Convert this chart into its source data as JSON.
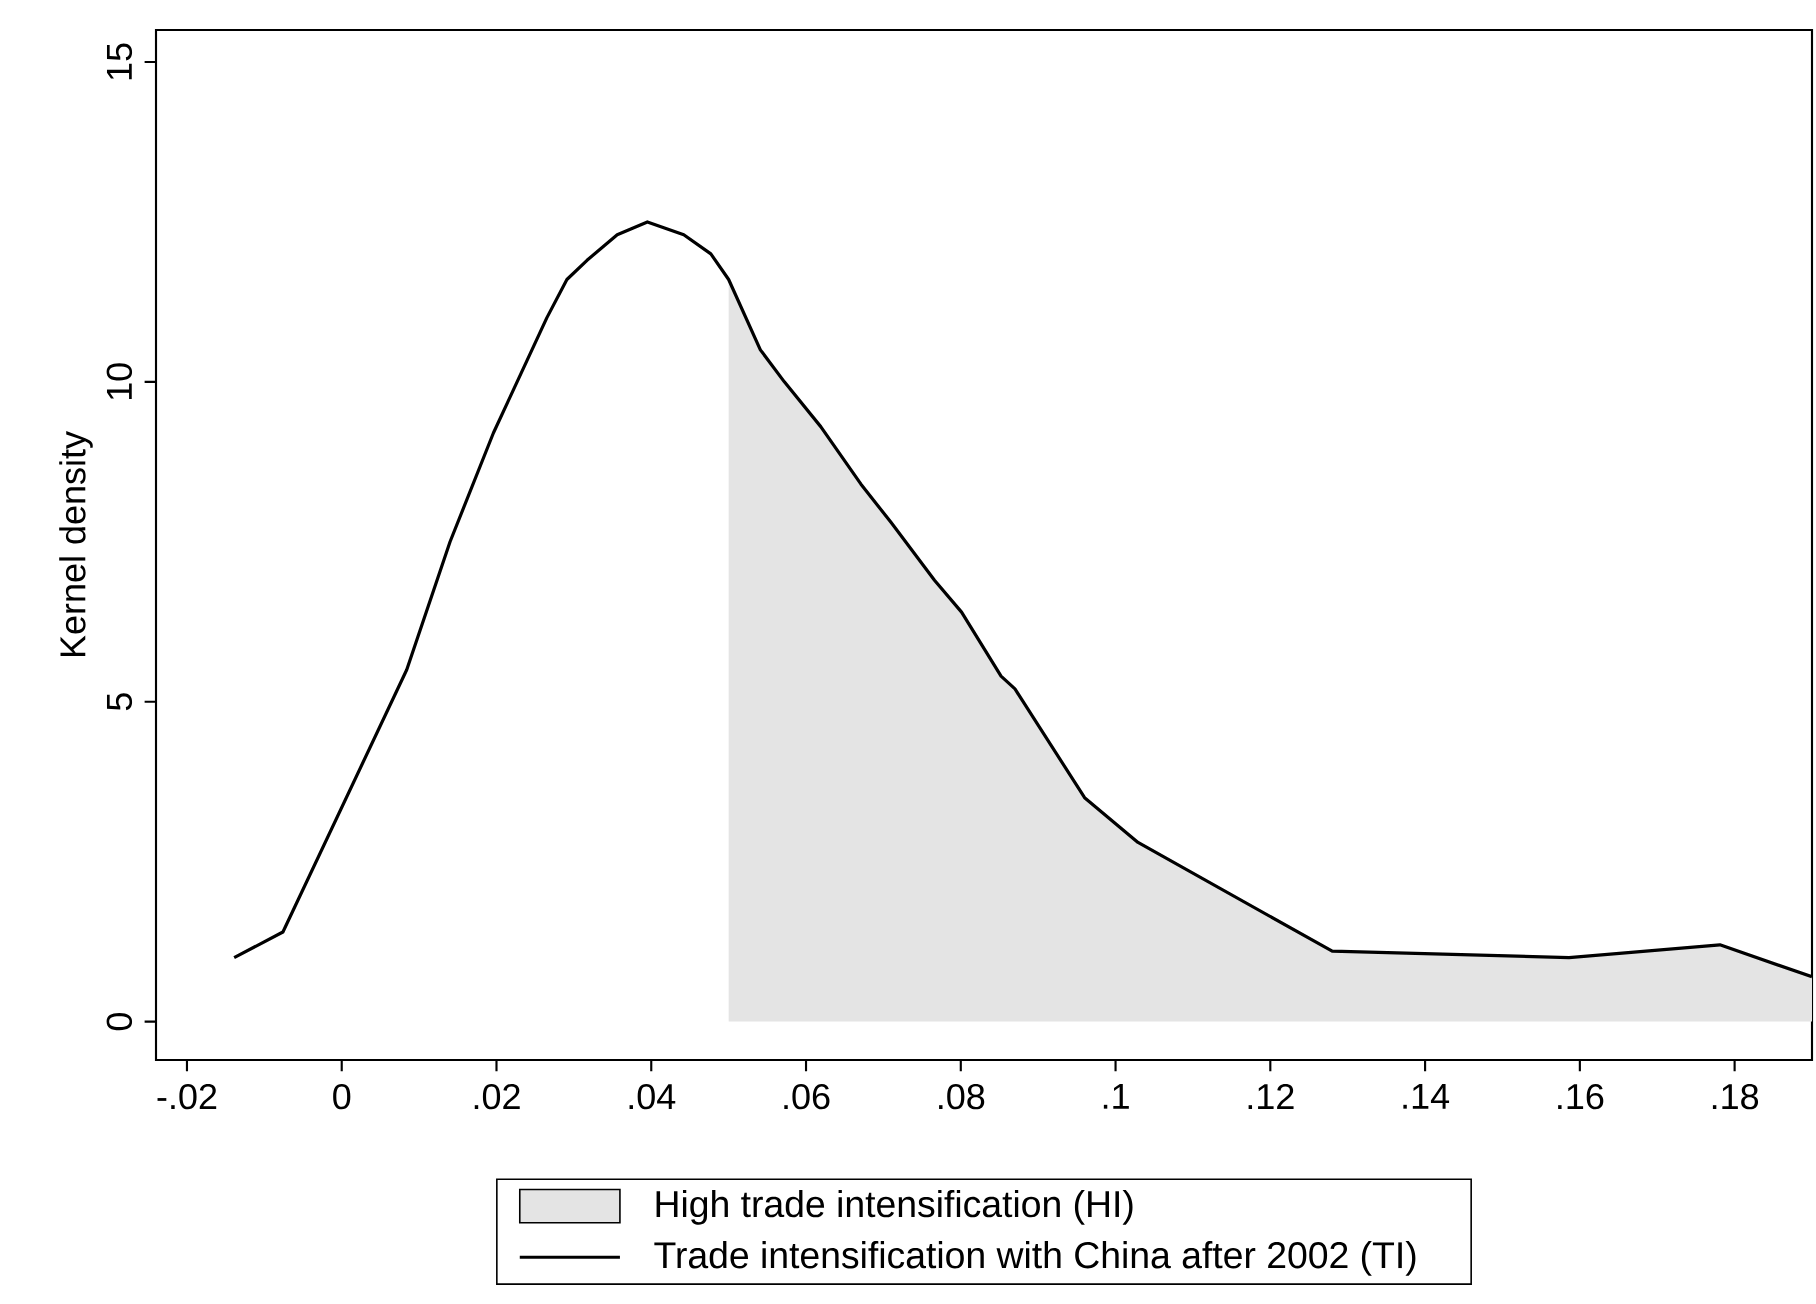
{
  "chart_data": {
    "type": "line",
    "ylabel": "Kernel density",
    "xlim": [
      -0.024,
      0.19
    ],
    "ylim": [
      -0.6,
      15.5
    ],
    "xticks": [
      {
        "value": -0.02,
        "label": "-.02"
      },
      0,
      {
        "value": 0.02,
        "label": ".02"
      },
      {
        "value": 0.04,
        "label": ".04"
      },
      {
        "value": 0.06,
        "label": ".06"
      },
      {
        "value": 0.08,
        "label": ".08"
      },
      {
        "value": 0.1,
        "label": ".1"
      },
      {
        "value": 0.12,
        "label": ".12"
      },
      {
        "value": 0.14,
        "label": ".14"
      },
      {
        "value": 0.16,
        "label": ".16"
      },
      {
        "value": 0.18,
        "label": ".18"
      }
    ],
    "yticks": [
      0,
      5,
      10,
      15
    ],
    "legend": "bottom",
    "grid": false,
    "marker": "none",
    "series": [
      {
        "name": "High trade intensification (HI)",
        "type": "area",
        "color": "#e4e4e4",
        "x": [
          0.05,
          0.0541,
          0.0572,
          0.0619,
          0.0671,
          0.071,
          0.0766,
          0.0801,
          0.0852,
          0.087,
          0.096,
          0.1029,
          0.128,
          0.1586,
          0.1781,
          0.19
        ],
        "values": [
          11.6,
          10.5,
          10.0,
          9.3,
          8.4,
          7.8,
          6.9,
          6.4,
          5.4,
          5.2,
          3.5,
          2.8,
          1.1,
          1.0,
          1.2,
          0.7
        ]
      },
      {
        "name": "Trade intensification with China after 2002 (TI)",
        "color": "#000000",
        "line_style": "solid",
        "x": [
          -0.0139,
          -0.0076,
          0.0084,
          0.014,
          0.0196,
          0.0265,
          0.0291,
          0.0317,
          0.0356,
          0.0395,
          0.0442,
          0.0477,
          0.05,
          0.0541,
          0.0572,
          0.0619,
          0.0671,
          0.071,
          0.0766,
          0.0801,
          0.0852,
          0.087,
          0.096,
          0.1029,
          0.128,
          0.1586,
          0.1781,
          0.19
        ],
        "values": [
          1.0,
          1.4,
          5.5,
          7.5,
          9.2,
          11.0,
          11.6,
          11.9,
          12.3,
          12.5,
          12.3,
          12.0,
          11.6,
          10.5,
          10.0,
          9.3,
          8.4,
          7.8,
          6.9,
          6.4,
          5.4,
          5.2,
          3.5,
          2.8,
          1.1,
          1.0,
          1.2,
          0.7
        ]
      }
    ]
  }
}
